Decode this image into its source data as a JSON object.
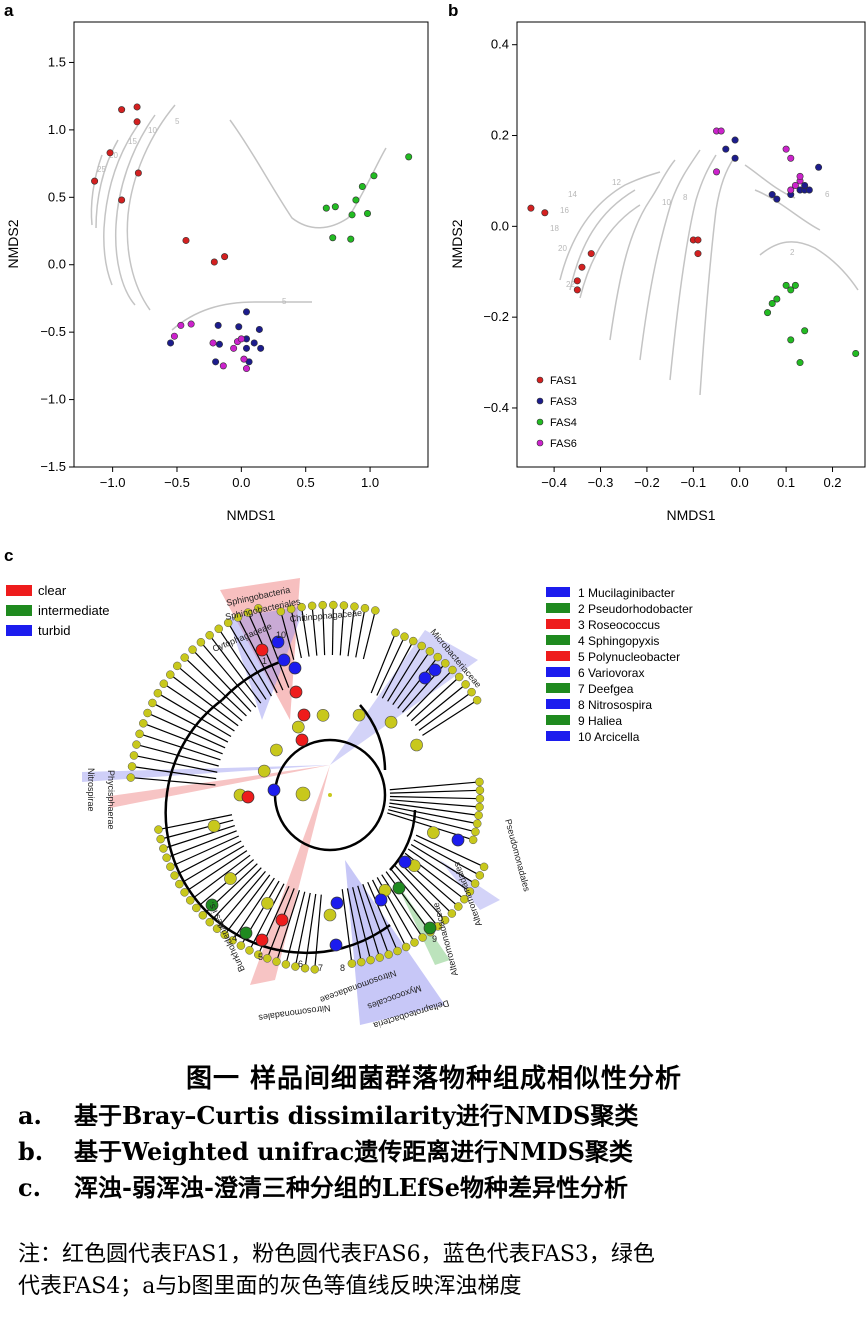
{
  "panel_labels": {
    "a": "a",
    "b": "b",
    "c": "c"
  },
  "chart_data": [
    {
      "type": "scatter",
      "panel": "a",
      "xlabel": "NMDS1",
      "ylabel": "NMDS2",
      "xlim": [
        -1.3,
        1.45
      ],
      "ylim": [
        -1.5,
        1.8
      ],
      "xticks": [
        "−1.0",
        "−0.5",
        "0.0",
        "0.5",
        "1.0"
      ],
      "yticks": [
        "−1.5",
        "−1.0",
        "−0.5",
        "0.0",
        "0.5",
        "1.0",
        "1.5"
      ],
      "contour_labels": [
        "5",
        "10",
        "15",
        "20",
        "25",
        "5"
      ],
      "series": [
        {
          "group": "FAS1",
          "color": "#d42020",
          "points": [
            [
              -1.14,
              0.62
            ],
            [
              -1.02,
              0.83
            ],
            [
              -0.93,
              0.48
            ],
            [
              -0.93,
              1.15
            ],
            [
              -0.81,
              1.06
            ],
            [
              -0.81,
              1.17
            ],
            [
              -0.8,
              0.68
            ],
            [
              -0.43,
              0.18
            ],
            [
              -0.21,
              0.02
            ],
            [
              -0.13,
              0.06
            ]
          ]
        },
        {
          "group": "FAS3",
          "color": "#1c1c8c",
          "points": [
            [
              -0.55,
              -0.58
            ],
            [
              -0.2,
              -0.72
            ],
            [
              -0.18,
              -0.45
            ],
            [
              -0.17,
              -0.59
            ],
            [
              -0.02,
              -0.46
            ],
            [
              0.04,
              -0.35
            ],
            [
              0.04,
              -0.55
            ],
            [
              0.04,
              -0.62
            ],
            [
              0.1,
              -0.58
            ],
            [
              0.14,
              -0.48
            ],
            [
              0.15,
              -0.62
            ],
            [
              0.06,
              -0.72
            ]
          ]
        },
        {
          "group": "FAS4",
          "color": "#22bb22",
          "points": [
            [
              0.66,
              0.42
            ],
            [
              0.71,
              0.2
            ],
            [
              0.73,
              0.43
            ],
            [
              0.85,
              0.19
            ],
            [
              0.86,
              0.37
            ],
            [
              0.89,
              0.48
            ],
            [
              0.94,
              0.58
            ],
            [
              0.98,
              0.38
            ],
            [
              1.03,
              0.66
            ],
            [
              1.3,
              0.8
            ]
          ]
        },
        {
          "group": "FAS6",
          "color": "#cc22cc",
          "points": [
            [
              -0.52,
              -0.53
            ],
            [
              -0.47,
              -0.45
            ],
            [
              -0.39,
              -0.44
            ],
            [
              -0.22,
              -0.58
            ],
            [
              -0.14,
              -0.75
            ],
            [
              -0.06,
              -0.62
            ],
            [
              -0.03,
              -0.57
            ],
            [
              0.0,
              -0.55
            ],
            [
              0.02,
              -0.7
            ],
            [
              0.04,
              -0.77
            ]
          ]
        }
      ]
    },
    {
      "type": "scatter",
      "panel": "b",
      "xlabel": "NMDS1",
      "ylabel": "NMDS2",
      "xlim": [
        -0.48,
        0.27
      ],
      "ylim": [
        -0.53,
        0.45
      ],
      "xticks": [
        "−0.4",
        "−0.3",
        "−0.2",
        "−0.1",
        "0.0",
        "0.1",
        "0.2"
      ],
      "yticks": [
        "−0.4",
        "−0.2",
        "0.0",
        "0.2",
        "0.4"
      ],
      "contour_labels": [
        "14",
        "16",
        "18",
        "20",
        "22",
        "12",
        "10",
        "8",
        "6",
        "2"
      ],
      "legend": {
        "position": "bottom-left",
        "entries": [
          "FAS1",
          "FAS3",
          "FAS4",
          "FAS6"
        ]
      },
      "series": [
        {
          "group": "FAS1",
          "color": "#d42020",
          "points": [
            [
              -0.45,
              0.04
            ],
            [
              -0.42,
              0.03
            ],
            [
              -0.35,
              -0.12
            ],
            [
              -0.35,
              -0.14
            ],
            [
              -0.34,
              -0.09
            ],
            [
              -0.32,
              -0.06
            ],
            [
              -0.1,
              -0.03
            ],
            [
              -0.09,
              -0.03
            ],
            [
              -0.09,
              -0.06
            ]
          ]
        },
        {
          "group": "FAS3",
          "color": "#1c1c8c",
          "points": [
            [
              -0.03,
              0.17
            ],
            [
              -0.01,
              0.15
            ],
            [
              -0.01,
              0.19
            ],
            [
              0.07,
              0.07
            ],
            [
              0.08,
              0.06
            ],
            [
              0.11,
              0.07
            ],
            [
              0.13,
              0.08
            ],
            [
              0.14,
              0.08
            ],
            [
              0.14,
              0.09
            ],
            [
              0.15,
              0.08
            ],
            [
              0.17,
              0.13
            ]
          ]
        },
        {
          "group": "FAS4",
          "color": "#22bb22",
          "points": [
            [
              0.06,
              -0.19
            ],
            [
              0.07,
              -0.17
            ],
            [
              0.08,
              -0.16
            ],
            [
              0.1,
              -0.13
            ],
            [
              0.11,
              -0.25
            ],
            [
              0.11,
              -0.14
            ],
            [
              0.12,
              -0.13
            ],
            [
              0.13,
              -0.3
            ],
            [
              0.14,
              -0.23
            ],
            [
              0.25,
              -0.28
            ]
          ]
        },
        {
          "group": "FAS6",
          "color": "#cc22cc",
          "points": [
            [
              -0.05,
              0.21
            ],
            [
              -0.05,
              0.12
            ],
            [
              -0.04,
              0.21
            ],
            [
              0.1,
              0.17
            ],
            [
              0.11,
              0.08
            ],
            [
              0.11,
              0.15
            ],
            [
              0.12,
              0.09
            ],
            [
              0.13,
              0.1
            ],
            [
              0.13,
              0.11
            ]
          ]
        }
      ]
    }
  ],
  "lefse": {
    "legend": [
      {
        "label": "clear",
        "color": "#ee1c1c"
      },
      {
        "label": "intermediate",
        "color": "#1f8a1f"
      },
      {
        "label": "turbid",
        "color": "#1c1cee"
      }
    ],
    "genera": [
      {
        "label": "1 Mucilaginibacter",
        "color": "#1c1cee"
      },
      {
        "label": "2 Pseudorhodobacter",
        "color": "#1f8a1f"
      },
      {
        "label": "3 Roseococcus",
        "color": "#ee1c1c"
      },
      {
        "label": "4 Sphingopyxis",
        "color": "#1f8a1f"
      },
      {
        "label": "5 Polynucleobacter",
        "color": "#ee1c1c"
      },
      {
        "label": "6 Variovorax",
        "color": "#1c1cee"
      },
      {
        "label": "7 Deefgea",
        "color": "#1f8a1f"
      },
      {
        "label": "8 Nitrosospira",
        "color": "#1c1cee"
      },
      {
        "label": "9 Haliea",
        "color": "#1f8a1f"
      },
      {
        "label": "10 Arcicella",
        "color": "#1c1cee"
      }
    ],
    "clade_labels": [
      "Sphingobacteria",
      "Sphingobacteriales",
      "Cytophagaceae",
      "Chitinophagaceae",
      "Microbacteriaceae",
      "Nitrospirae",
      "Phycisphaerae",
      "Pseudomonadales",
      "Alteromonadales",
      "Alteromonadaceae",
      "Myxococcales",
      "Nitrosomonadaceae",
      "Nitrosomonadales",
      "Deltaproteobacteria",
      "Burkholderiales i.s."
    ],
    "numbers": [
      "1",
      "10",
      "3",
      "4",
      "5",
      "6",
      "7",
      "8",
      "9"
    ]
  },
  "caption": {
    "title": "图一   样品间细菌群落物种组成相似性分析",
    "a_tag": "a.",
    "a_text": "基于Bray–Curtis dissimilarity进行NMDS聚类",
    "b_tag": "b.",
    "b_text": "基于Weighted unifrac遗传距离进行NMDS聚类",
    "c_tag": "c.",
    "c_text": "浑浊-弱浑浊-澄清三种分组的LEfSe物种差异性分析"
  },
  "note": {
    "line1": "注：红色圆代表FAS1，粉色圆代表FAS6，蓝色代表FAS3，绿色",
    "line2": "代表FAS4；a与b图里面的灰色等值线反映浑浊梯度"
  }
}
